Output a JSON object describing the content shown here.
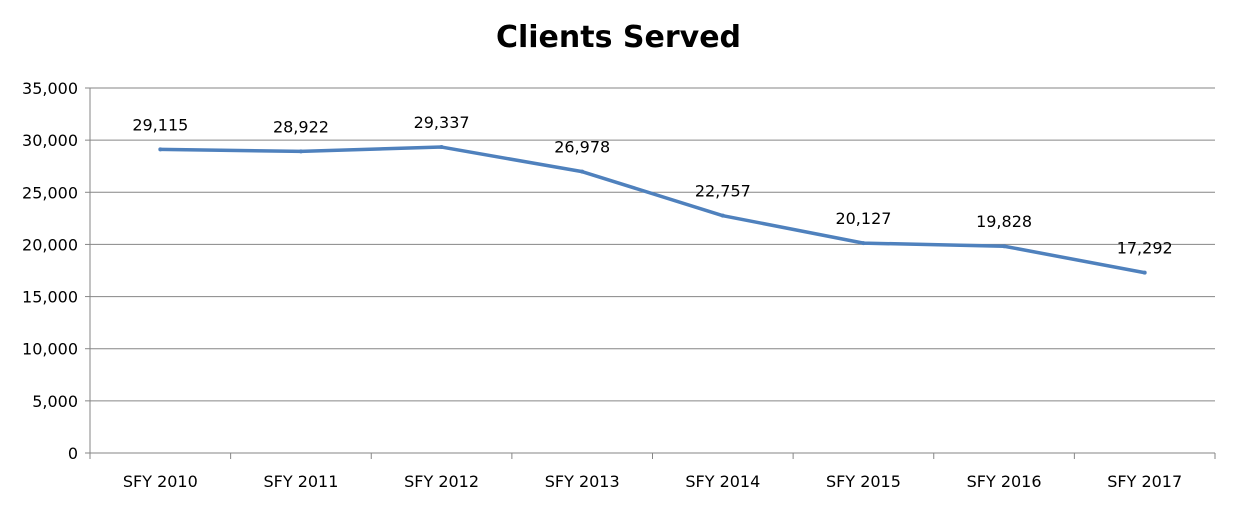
{
  "chart_data": {
    "type": "line",
    "title": "Clients Served",
    "xlabel": "",
    "ylabel": "",
    "categories": [
      "SFY 2010",
      "SFY 2011",
      "SFY 2012",
      "SFY 2013",
      "SFY 2014",
      "SFY 2015",
      "SFY 2016",
      "SFY 2017"
    ],
    "series": [
      {
        "values": [
          29115,
          28922,
          29337,
          26978,
          22757,
          20127,
          19828,
          17292
        ],
        "data_labels": [
          "29,115",
          "28,922",
          "29,337",
          "26,978",
          "22,757",
          "20,127",
          "19,828",
          "17,292"
        ],
        "color": "#4F81BD"
      }
    ],
    "ylim": [
      0,
      35000
    ],
    "y_ticks": [
      0,
      5000,
      10000,
      15000,
      20000,
      25000,
      30000,
      35000
    ],
    "y_tick_labels": [
      "0",
      "5,000",
      "10,000",
      "15,000",
      "20,000",
      "25,000",
      "30,000",
      "35,000"
    ],
    "grid": true,
    "gridline_color": "#868686",
    "legend": "none"
  }
}
